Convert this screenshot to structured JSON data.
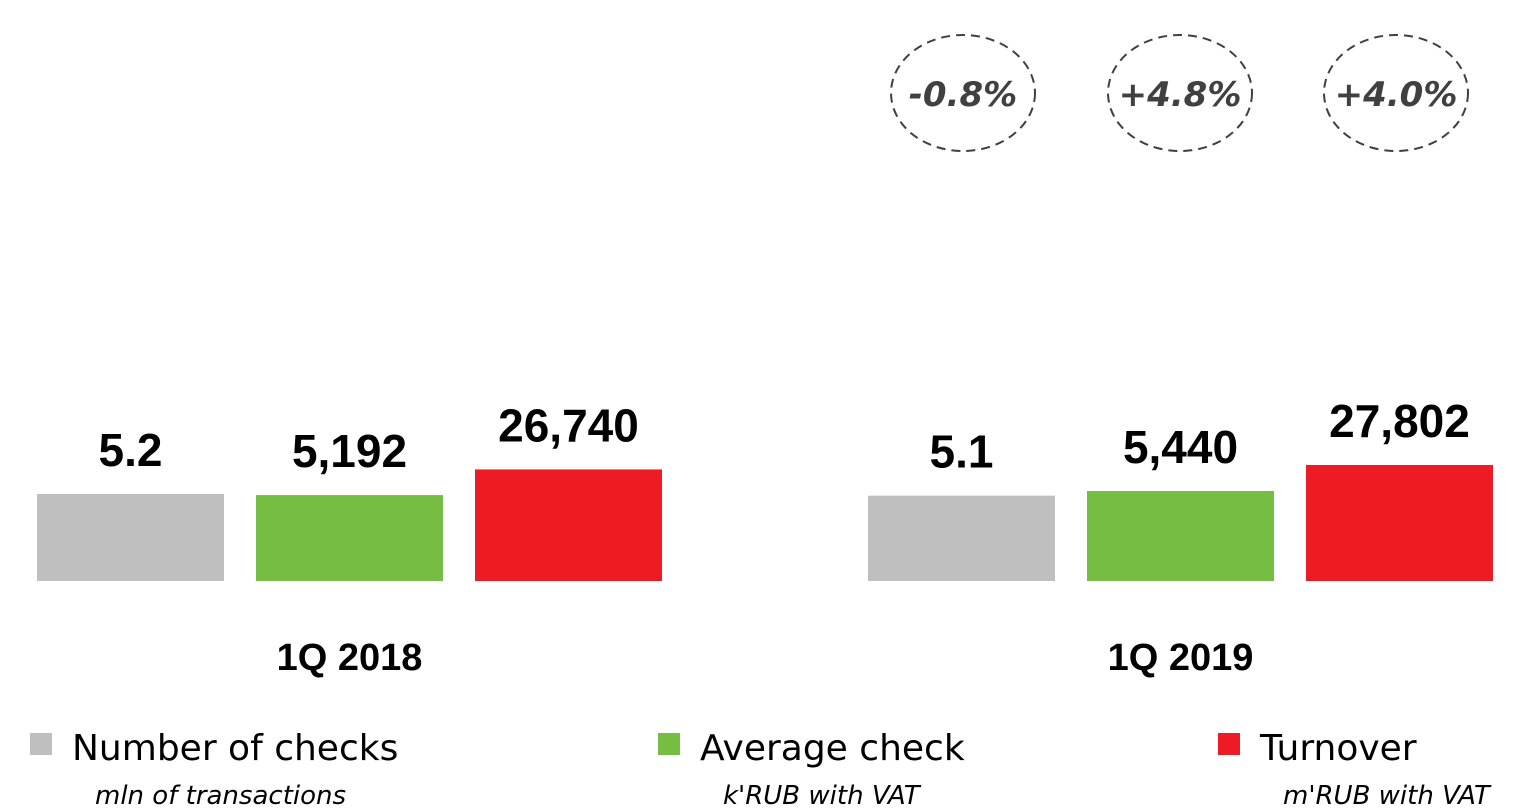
{
  "chart_data": {
    "type": "bar",
    "categories": [
      "1Q 2018",
      "1Q 2019"
    ],
    "series": [
      {
        "name": "Number of checks",
        "unit": "mln of transactions",
        "color": "#bfbfbf",
        "values": [
          5.2,
          5.1
        ]
      },
      {
        "name": "Average check",
        "unit": "k'RUB with VAT",
        "color": "#76bd43",
        "values": [
          5192,
          5440
        ],
        "value_labels": [
          "5,192",
          "5,440"
        ]
      },
      {
        "name": "Turnover",
        "unit": "m'RUB with VAT",
        "color": "#ed1c24",
        "values": [
          26740,
          27802
        ],
        "value_labels": [
          "26,740",
          "27,802"
        ]
      }
    ],
    "annotations": [
      "-0.8%",
      "+4.8%",
      "+4.0%"
    ]
  }
}
